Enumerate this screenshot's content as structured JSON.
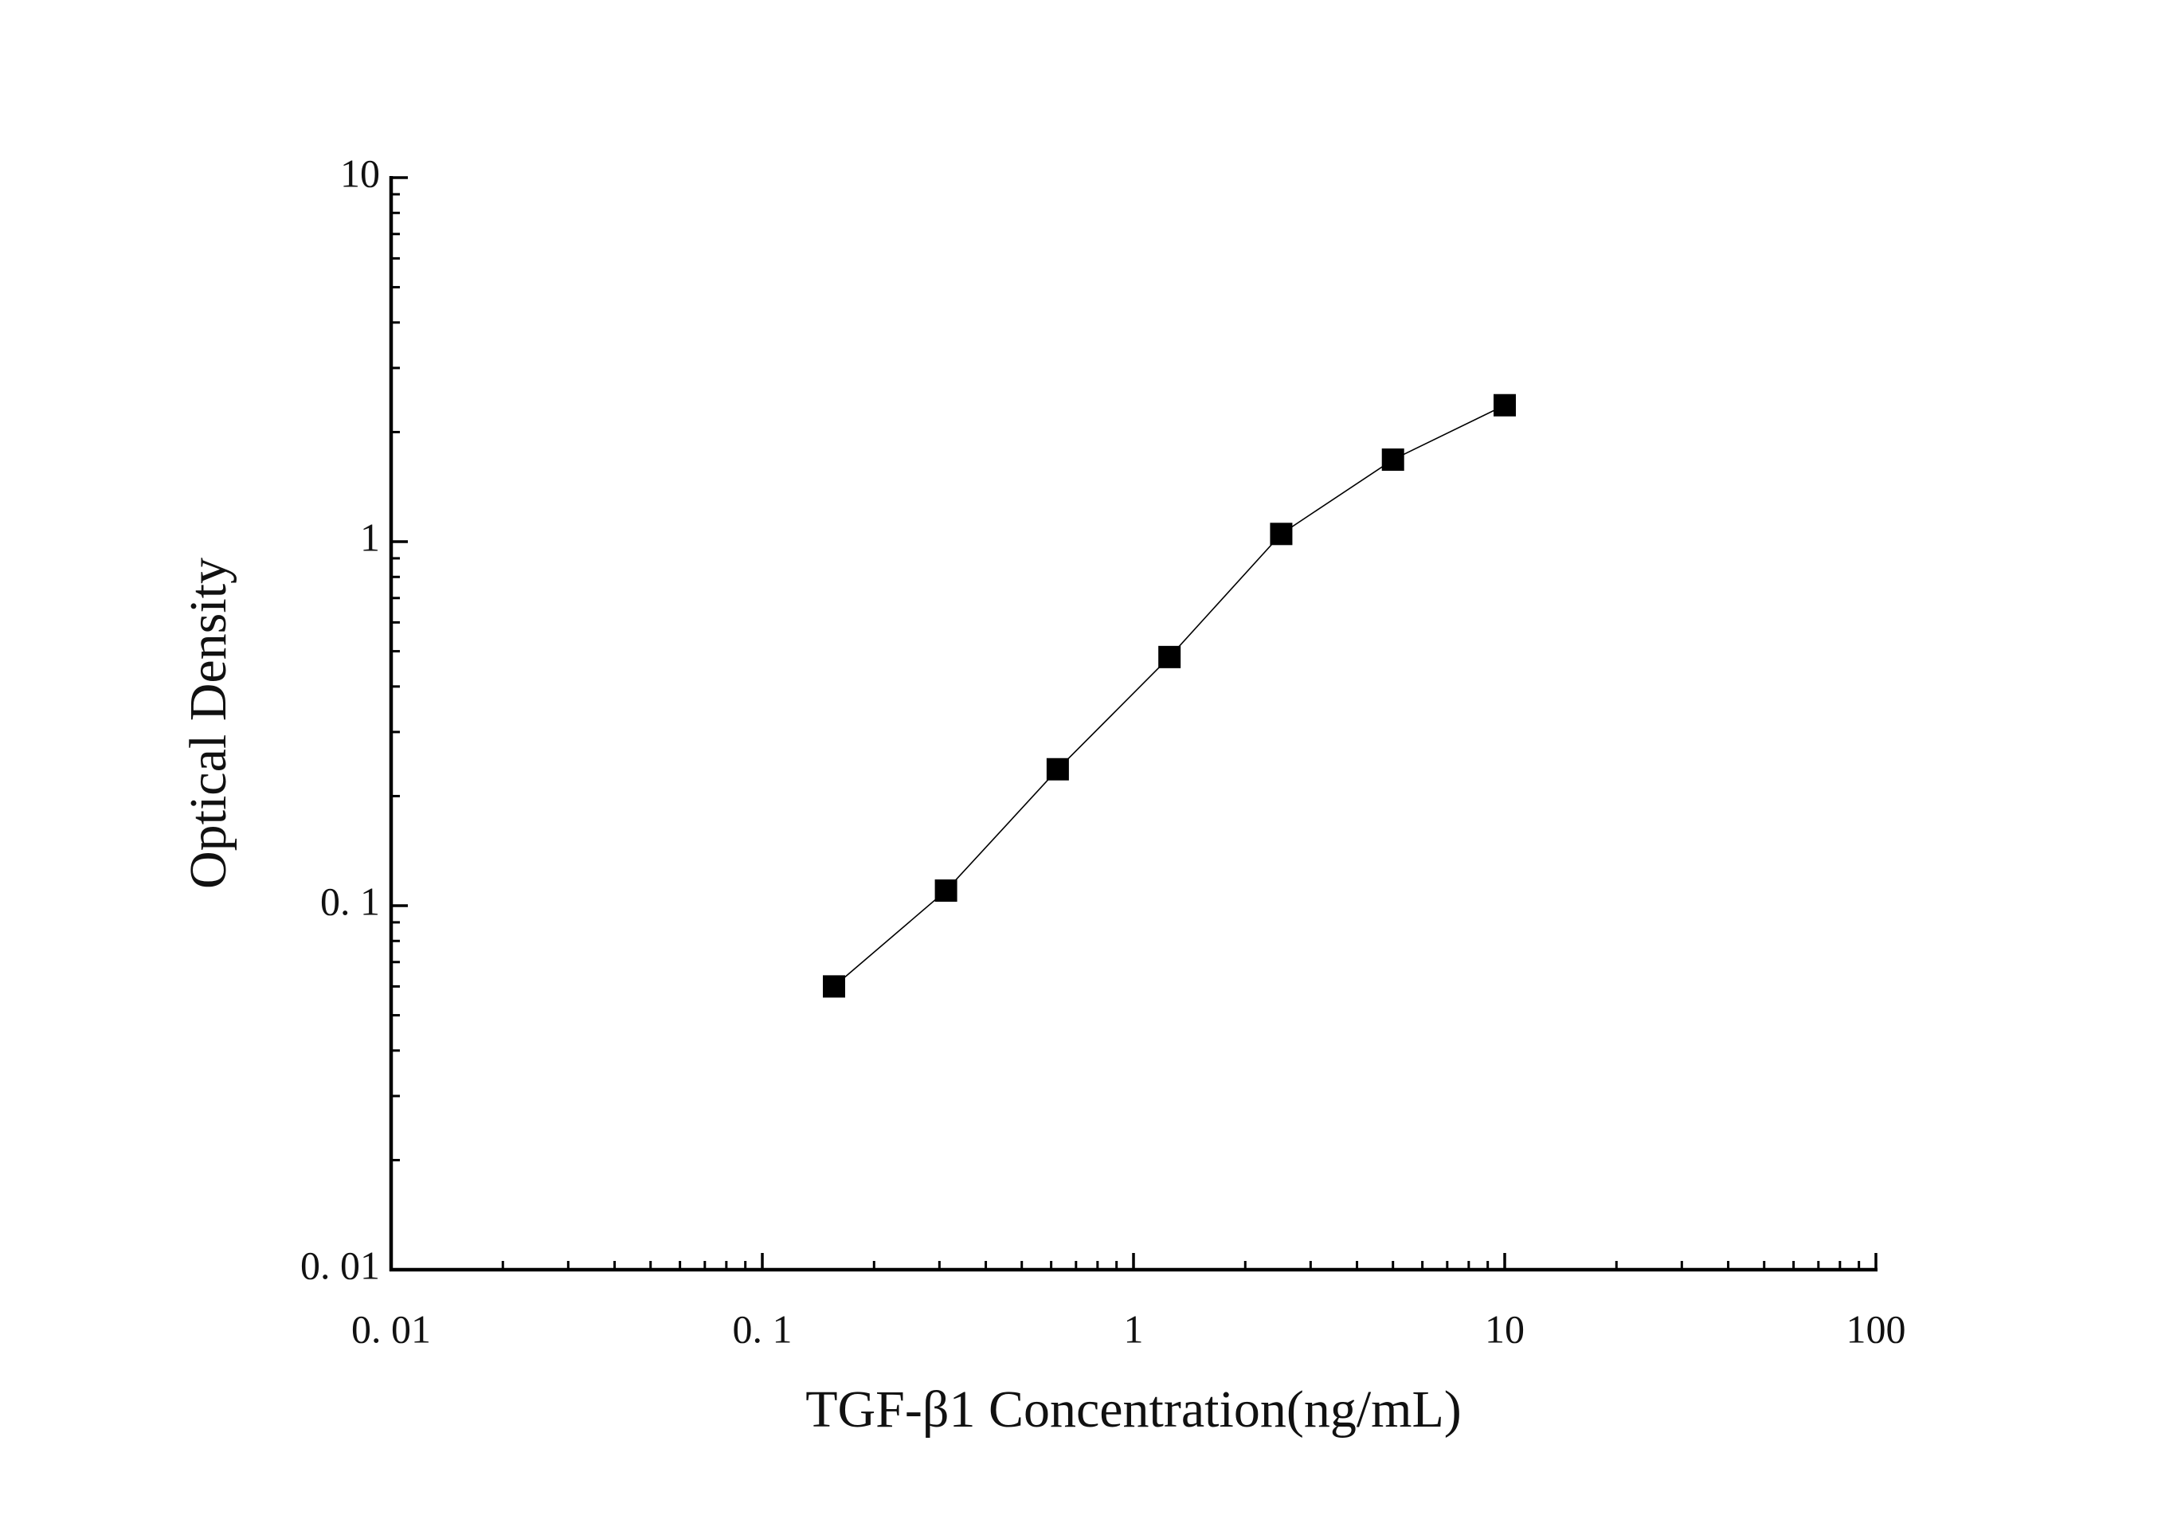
{
  "chart_data": {
    "type": "scatter",
    "x_label": "TGF-β1 Concentration(ng/mL)",
    "y_label": "Optical Density",
    "x_scale": "log",
    "y_scale": "log",
    "xlim": [
      0.01,
      100
    ],
    "xticks": [
      {
        "value": 0.01,
        "label": "0. 01"
      },
      {
        "value": 0.1,
        "label": "0. 1"
      },
      1,
      10,
      100
    ],
    "ylim": [
      0.01,
      10
    ],
    "yticks": [
      {
        "value": 0.01,
        "label": "0. 01"
      },
      {
        "value": 0.1,
        "label": "0. 1"
      },
      1,
      10
    ],
    "series": [
      {
        "color": "#000000",
        "x": [
          0.156,
          0.3125,
          0.625,
          1.25,
          2.5,
          5,
          10
        ],
        "values": [
          0.06,
          0.11,
          0.237,
          0.482,
          1.05,
          1.68,
          2.37
        ]
      }
    ]
  }
}
